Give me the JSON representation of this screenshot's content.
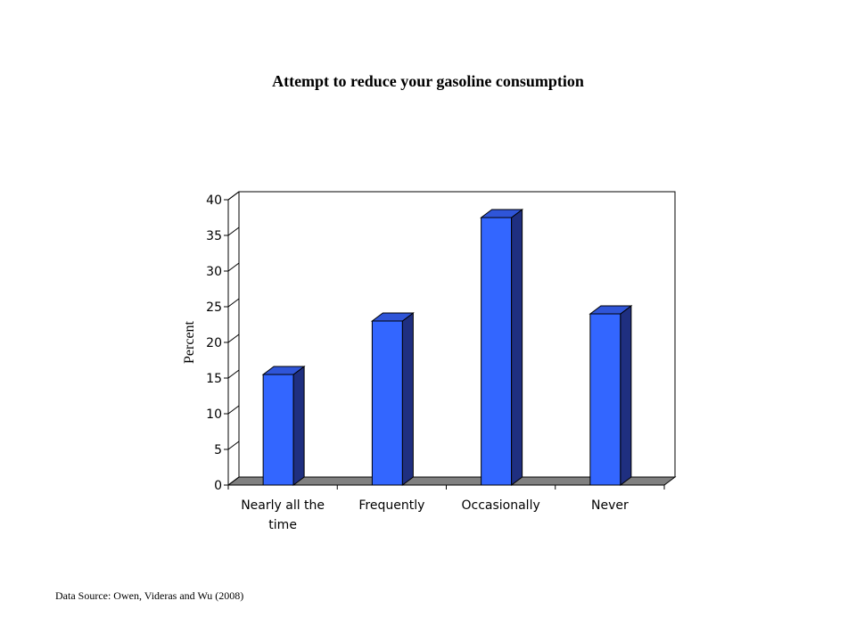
{
  "chart_data": {
    "type": "bar",
    "title": "Attempt to reduce your gasoline consumption",
    "ylabel": "Percent",
    "xlabel": "",
    "categories": [
      [
        "Nearly all the",
        "time"
      ],
      [
        "Frequently"
      ],
      [
        "Occasionally"
      ],
      [
        "Never"
      ]
    ],
    "values": [
      15.5,
      23,
      37.5,
      24
    ],
    "ylim": [
      0,
      40
    ],
    "yticks": [
      "0",
      "5",
      "10",
      "15",
      "20",
      "25",
      "30",
      "35",
      "40"
    ],
    "grid": false,
    "legend": "none",
    "three_d": true,
    "colors": {
      "bar_front": "#3366ff",
      "bar_side": "#1f2f80",
      "bar_top": "#2f55d8",
      "floor": "#808080",
      "wall": "#ffffff",
      "axis": "#000000"
    }
  },
  "source_note": "Data Source: Owen, Videras and Wu (2008)"
}
